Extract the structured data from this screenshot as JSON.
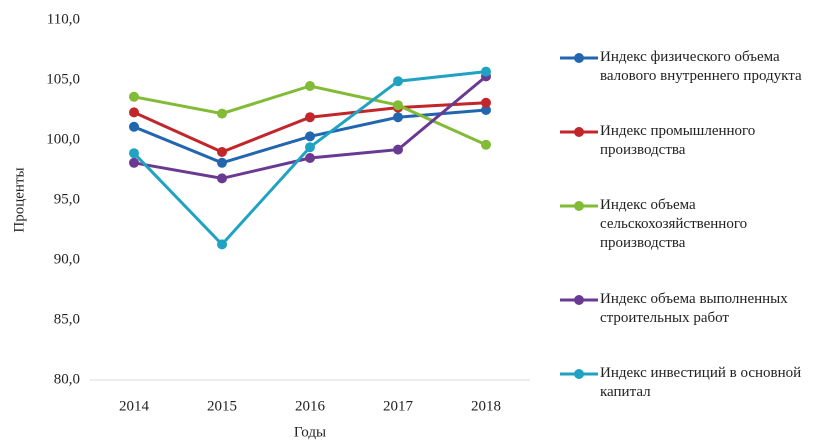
{
  "chart_data": {
    "type": "line",
    "y_label": "Проценты",
    "x_label": "Годы",
    "categories": [
      "2014",
      "2015",
      "2016",
      "2017",
      "2018"
    ],
    "ylim": [
      80,
      110
    ],
    "yticks": [
      {
        "value": 80,
        "label": "80,0"
      },
      {
        "value": 85,
        "label": "85,0"
      },
      {
        "value": 90,
        "label": "90,0"
      },
      {
        "value": 95,
        "label": "95,0"
      },
      {
        "value": 100,
        "label": "100,0"
      },
      {
        "value": 105,
        "label": "105,0"
      },
      {
        "value": 110,
        "label": "110,0"
      }
    ],
    "grid": false,
    "legend": "right",
    "series": [
      {
        "name": "Индекс физического объема валового внутреннего продукта",
        "color": "#2266b0",
        "values": [
          101.1,
          98.1,
          100.3,
          101.9,
          102.5
        ]
      },
      {
        "name": "Индекс промышленного производства",
        "color": "#c0262a",
        "values": [
          102.3,
          99.0,
          101.9,
          102.7,
          103.1
        ]
      },
      {
        "name": "Индекс объема сельскохозяйственного производства",
        "color": "#82bb35",
        "values": [
          103.6,
          102.2,
          104.5,
          102.9,
          99.6
        ]
      },
      {
        "name": "Индекс объема выполненных строительных работ",
        "color": "#6a3a92",
        "values": [
          98.1,
          96.8,
          98.5,
          99.2,
          105.3
        ]
      },
      {
        "name": "Индекс инвестиций в основной капитал",
        "color": "#20a3c2",
        "values": [
          98.9,
          91.3,
          99.4,
          104.9,
          105.7
        ]
      }
    ]
  }
}
